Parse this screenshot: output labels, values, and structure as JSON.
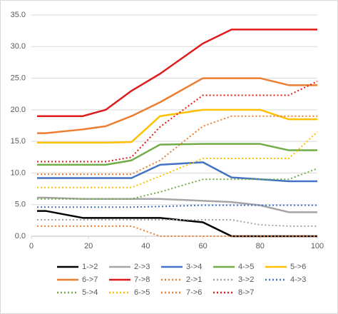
{
  "chart_data": {
    "type": "line",
    "x": [
      2,
      5,
      18,
      26,
      35,
      45,
      60,
      70,
      80,
      90,
      100
    ],
    "xlim": [
      0,
      100
    ],
    "xticks": [
      0,
      20,
      40,
      60,
      80,
      100
    ],
    "ylim": [
      0,
      35
    ],
    "yticks": [
      {
        "value": 0,
        "label": "0.0"
      },
      {
        "value": 5,
        "label": "5.0"
      },
      {
        "value": 10,
        "label": "10.0"
      },
      {
        "value": 15,
        "label": "15.0"
      },
      {
        "value": 20,
        "label": "20.0"
      },
      {
        "value": 25,
        "label": "25.0"
      },
      {
        "value": 30,
        "label": "30.0"
      },
      {
        "value": 35,
        "label": "35.0"
      }
    ],
    "grid": true,
    "legend": "bottom",
    "series": [
      {
        "name": "1->2",
        "color": "#000000",
        "style": "solid",
        "values": [
          4.0,
          4.0,
          2.9,
          2.9,
          2.9,
          2.9,
          2.2,
          0,
          0,
          0,
          0
        ]
      },
      {
        "name": "2->3",
        "color": "#a5a5a5",
        "style": "solid",
        "values": [
          6.1,
          6.1,
          5.9,
          5.9,
          5.9,
          5.9,
          5.6,
          5.4,
          4.9,
          3.8,
          3.8
        ]
      },
      {
        "name": "3->4",
        "color": "#4472c4",
        "style": "solid",
        "values": [
          9.2,
          9.2,
          9.2,
          9.2,
          9.2,
          11.3,
          11.7,
          9.3,
          9.0,
          8.7,
          8.7
        ]
      },
      {
        "name": "4->5",
        "color": "#70ad47",
        "style": "solid",
        "values": [
          11.3,
          11.3,
          11.3,
          11.3,
          12.0,
          14.5,
          14.6,
          14.6,
          14.6,
          13.6,
          13.6
        ]
      },
      {
        "name": "5->6",
        "color": "#ffc000",
        "style": "solid",
        "values": [
          14.8,
          14.8,
          14.8,
          14.8,
          14.9,
          19.0,
          20.0,
          20.0,
          20.0,
          18.5,
          18.5
        ]
      },
      {
        "name": "6->7",
        "color": "#ed7d31",
        "style": "solid",
        "values": [
          16.3,
          16.3,
          16.9,
          17.4,
          19.0,
          21.2,
          25.0,
          25.0,
          25.0,
          23.9,
          23.9
        ]
      },
      {
        "name": "7->8",
        "color": "#e01b1b",
        "style": "solid",
        "values": [
          19.0,
          19.0,
          19.0,
          20.0,
          23.0,
          25.7,
          30.5,
          32.7,
          32.7,
          32.7,
          32.7
        ]
      },
      {
        "name": "2->1",
        "color": "#ed7d31",
        "style": "dotted",
        "values": [
          1.6,
          1.6,
          1.6,
          1.6,
          1.6,
          0,
          0,
          0,
          0,
          0,
          0
        ]
      },
      {
        "name": "3->2",
        "color": "#a5a5a5",
        "style": "dotted",
        "values": [
          2.6,
          2.6,
          2.6,
          2.6,
          2.6,
          2.6,
          2.6,
          2.6,
          1.8,
          1.6,
          1.6
        ]
      },
      {
        "name": "4->3",
        "color": "#4472c4",
        "style": "dotted",
        "values": [
          4.6,
          4.6,
          4.6,
          4.6,
          4.6,
          4.7,
          4.9,
          4.9,
          4.9,
          4.9,
          4.9
        ]
      },
      {
        "name": "5->4",
        "color": "#70ad47",
        "style": "dotted",
        "values": [
          5.9,
          5.9,
          5.9,
          5.9,
          5.9,
          7.0,
          9.0,
          9.0,
          9.0,
          9.0,
          10.7
        ]
      },
      {
        "name": "6->5",
        "color": "#ffc000",
        "style": "dotted",
        "values": [
          7.7,
          7.7,
          7.7,
          7.7,
          7.7,
          9.5,
          12.3,
          12.3,
          12.3,
          12.3,
          16.5
        ]
      },
      {
        "name": "7->6",
        "color": "#ed7d31",
        "style": "dotted",
        "values": [
          9.8,
          9.8,
          9.8,
          9.8,
          9.8,
          12.0,
          17.4,
          19.0,
          19.0,
          19.0,
          19.0
        ]
      },
      {
        "name": "8->7",
        "color": "#e01b1b",
        "style": "dotted",
        "values": [
          11.8,
          11.8,
          11.8,
          11.8,
          12.5,
          17.3,
          22.3,
          22.3,
          22.3,
          22.3,
          24.5
        ]
      }
    ]
  }
}
